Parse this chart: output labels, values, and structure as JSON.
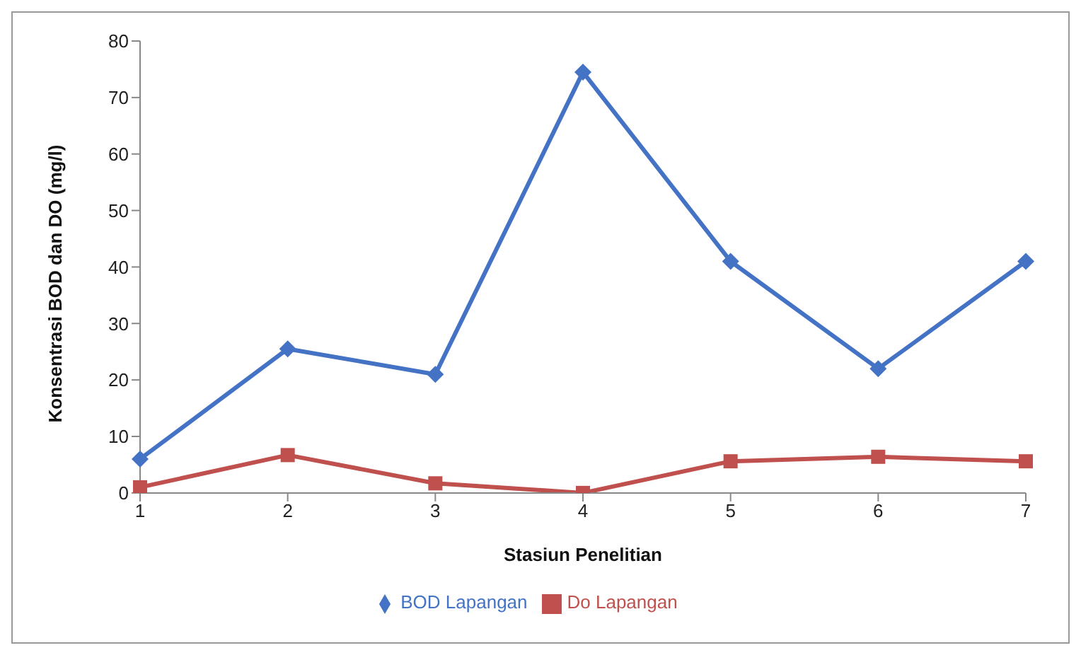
{
  "chart_data": {
    "type": "line",
    "xlabel": "Stasiun Penelitian",
    "ylabel": "Konsentrasi BOD dan DO (mg/l)",
    "categories": [
      "1",
      "2",
      "3",
      "4",
      "5",
      "6",
      "7"
    ],
    "series": [
      {
        "name": "BOD Lapangan",
        "color": "#4472c4",
        "marker": "diamond",
        "values": [
          6,
          25.5,
          21,
          74.5,
          41,
          22,
          41
        ]
      },
      {
        "name": "Do Lapangan",
        "color": "#c0504d",
        "marker": "square",
        "values": [
          1,
          6.7,
          1.7,
          0,
          5.6,
          6.4,
          5.6
        ]
      }
    ],
    "ylim": [
      0,
      80
    ],
    "yticks": [
      0,
      10,
      20,
      30,
      40,
      50,
      60,
      70,
      80
    ],
    "grid": false,
    "legend": "bottom"
  }
}
